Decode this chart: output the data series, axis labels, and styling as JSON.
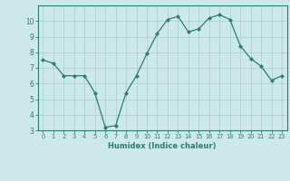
{
  "x": [
    0,
    1,
    2,
    3,
    4,
    5,
    6,
    7,
    8,
    9,
    10,
    11,
    12,
    13,
    14,
    15,
    16,
    17,
    18,
    19,
    20,
    21,
    22,
    23
  ],
  "y": [
    7.5,
    7.3,
    6.5,
    6.5,
    6.5,
    5.4,
    3.2,
    3.3,
    5.4,
    6.5,
    7.9,
    9.2,
    10.1,
    10.3,
    9.3,
    9.5,
    10.2,
    10.4,
    10.1,
    8.4,
    7.6,
    7.1,
    6.2,
    6.5
  ],
  "xlabel": "Humidex (Indice chaleur)",
  "ylim": [
    3,
    11
  ],
  "xlim": [
    -0.5,
    23.5
  ],
  "yticks": [
    3,
    4,
    5,
    6,
    7,
    8,
    9,
    10
  ],
  "xticks": [
    0,
    1,
    2,
    3,
    4,
    5,
    6,
    7,
    8,
    9,
    10,
    11,
    12,
    13,
    14,
    15,
    16,
    17,
    18,
    19,
    20,
    21,
    22,
    23
  ],
  "line_color": "#2d7d6e",
  "marker_color": "#2d7d6e",
  "bg_color": "#cce8e8",
  "grid_color": "#aacece",
  "axes_color": "#2d7d6e",
  "tick_label_color": "#2d7d6e"
}
